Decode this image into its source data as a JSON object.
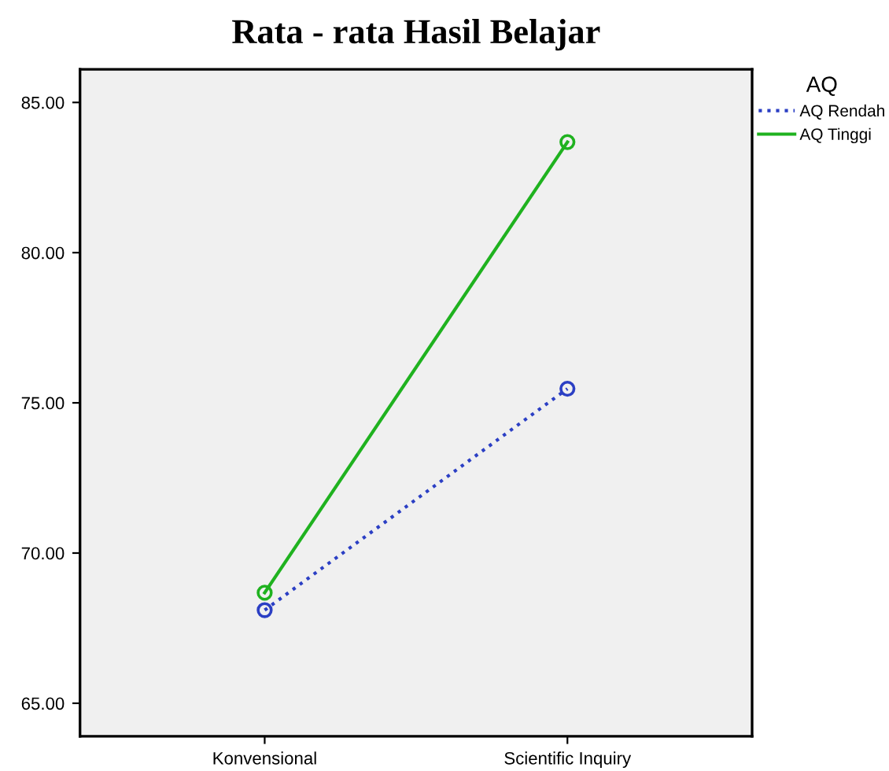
{
  "chart_data": {
    "type": "line",
    "title": "Rata - rata Hasil Belajar",
    "legend_title": "AQ",
    "categories": [
      "Konvensional",
      "Scientific Inquiry"
    ],
    "series": [
      {
        "name": "AQ Rendah",
        "color": "#2b3fc4",
        "values": [
          68.1,
          75.47
        ],
        "line_style": "dotted"
      },
      {
        "name": "AQ Tinggi",
        "color": "#1fb21f",
        "values": [
          68.68,
          83.68
        ],
        "line_style": "solid"
      }
    ],
    "ylim": [
      63.9,
      86.1
    ],
    "yticks": [
      {
        "value": 65,
        "label": "65.00"
      },
      {
        "value": 70,
        "label": "70.00"
      },
      {
        "value": 75,
        "label": "75.00"
      },
      {
        "value": 80,
        "label": "80.00"
      },
      {
        "value": 85,
        "label": "85.00"
      }
    ],
    "marker": "circle",
    "grid": false,
    "legend": "top right"
  }
}
